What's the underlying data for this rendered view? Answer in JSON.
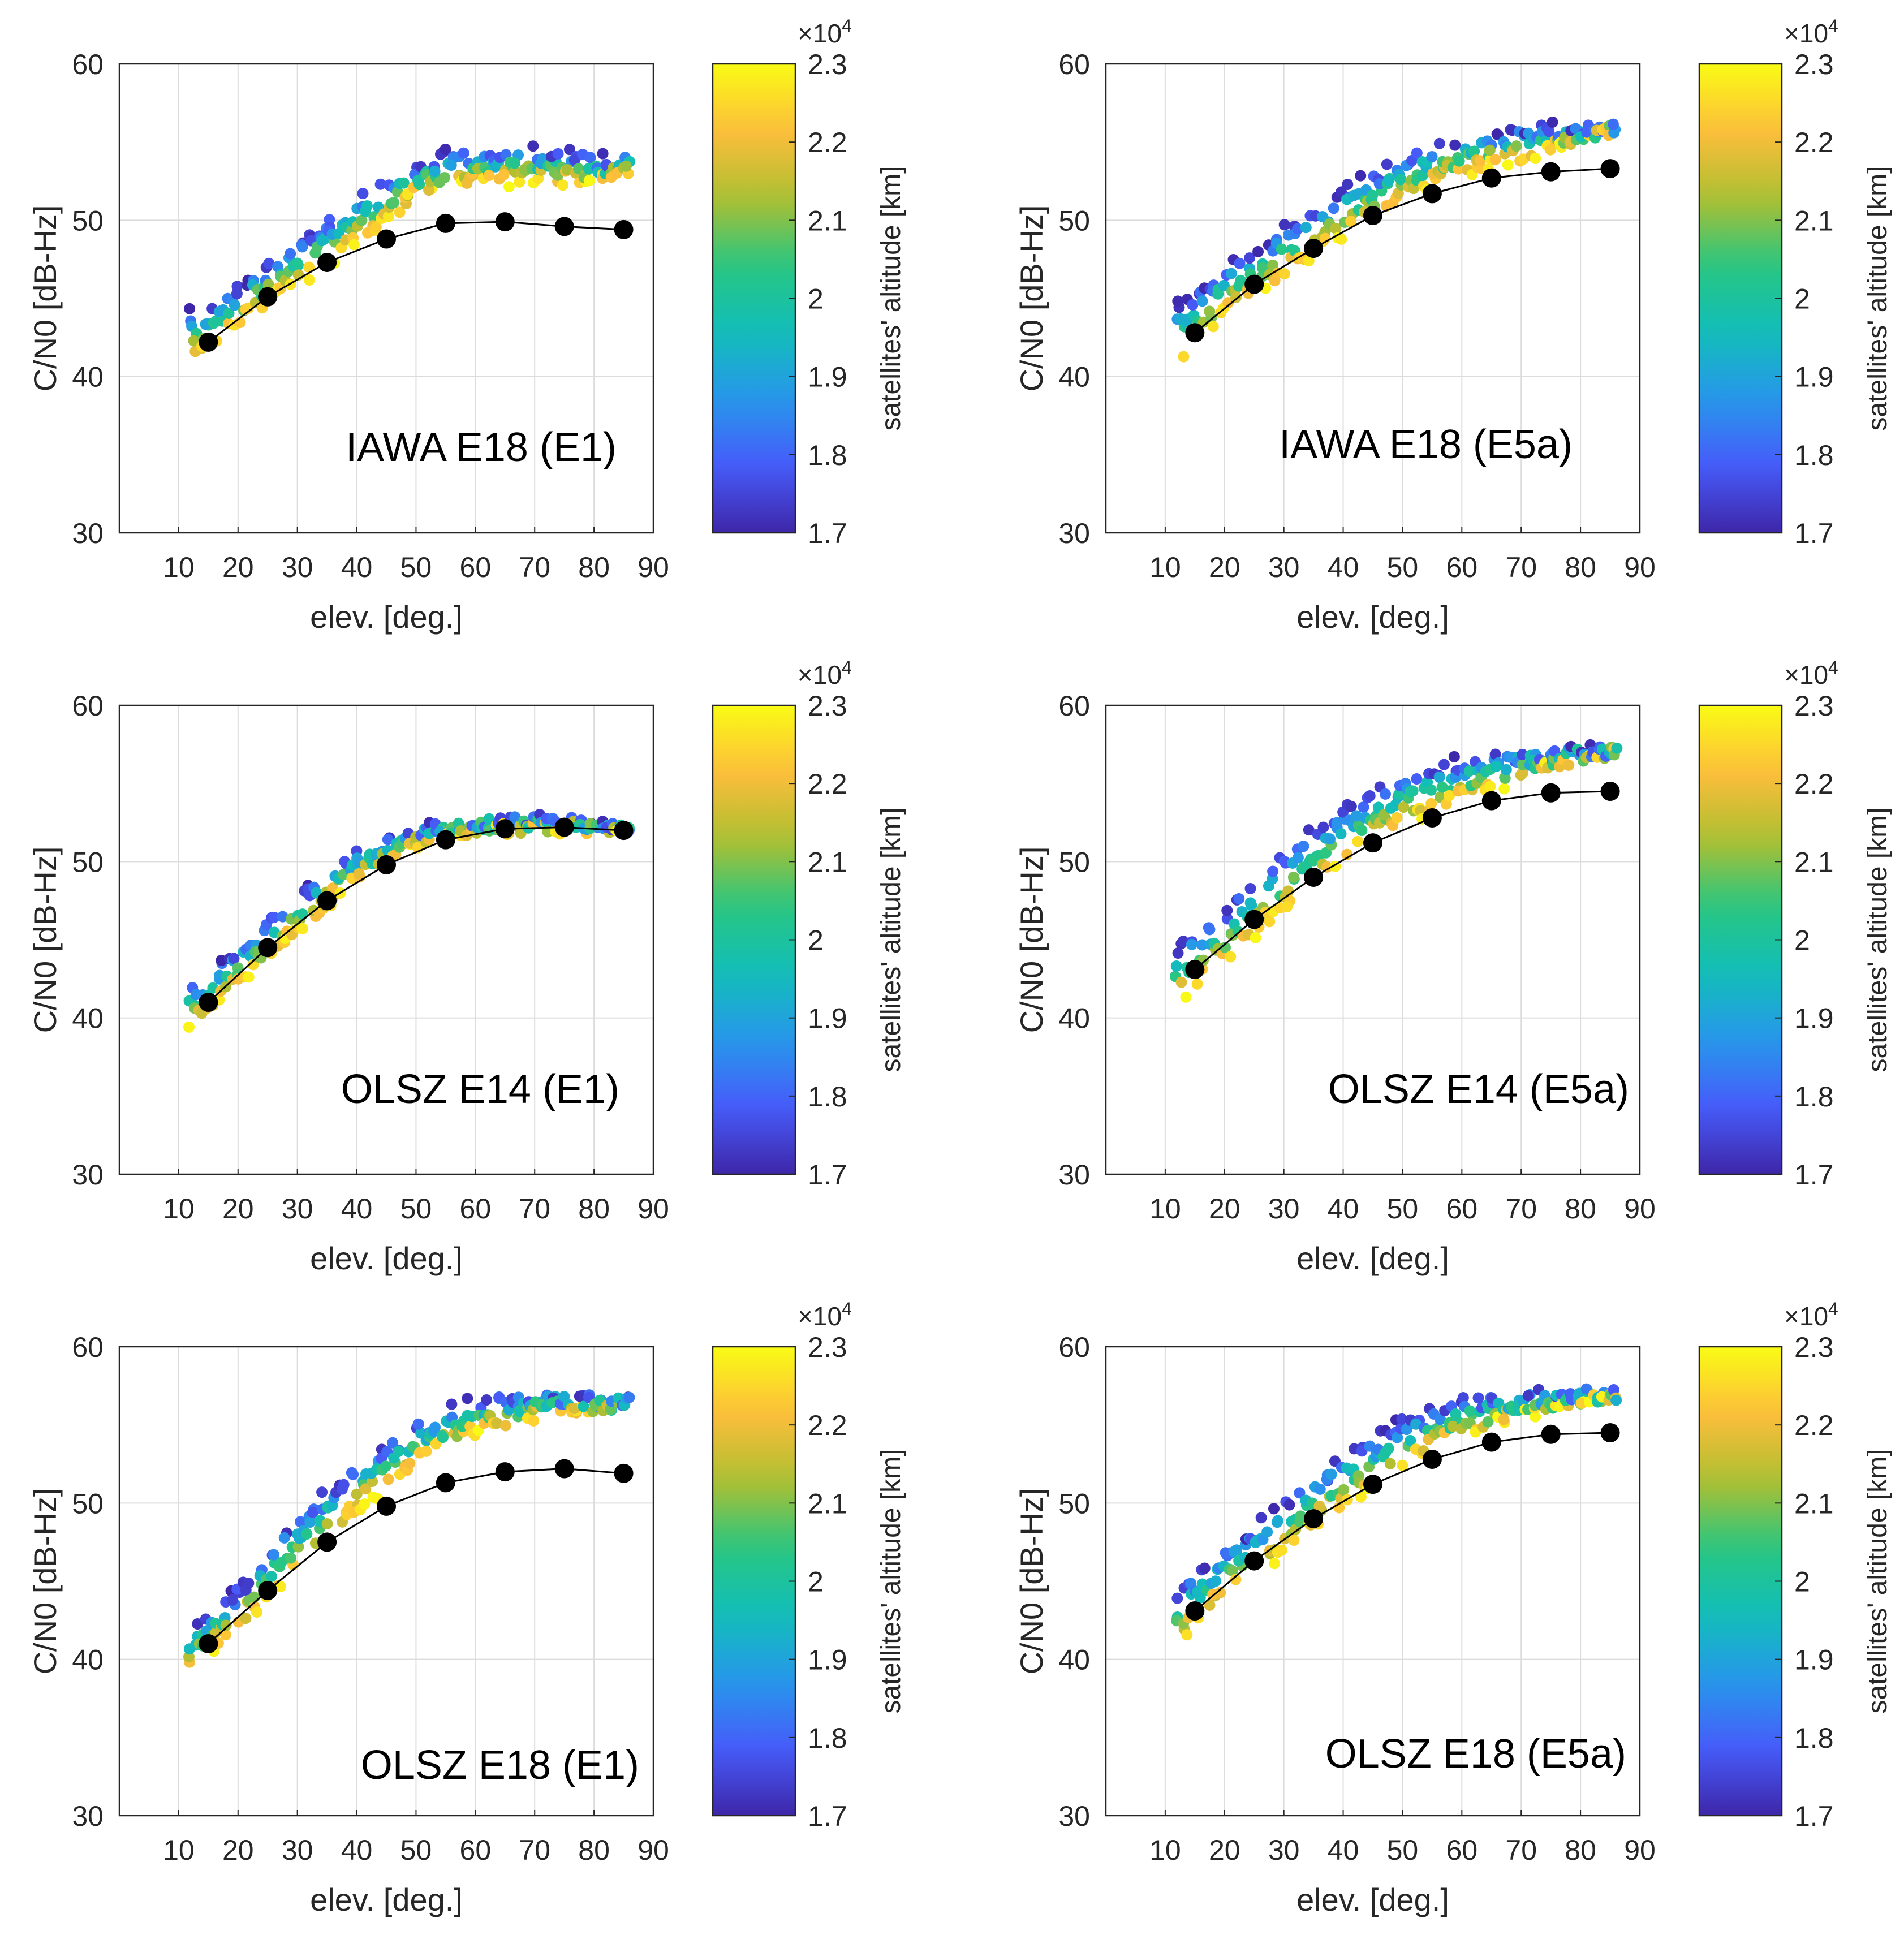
{
  "chart_data": [
    {
      "type": "scatter",
      "title": "IAWA E18 (E1)",
      "xlabel": "elev. [deg.]",
      "ylabel": "C/N0 [dB-Hz]",
      "xlim": [
        0,
        90
      ],
      "ylim": [
        30,
        60
      ],
      "xticks": [
        10,
        20,
        30,
        40,
        50,
        60,
        70,
        80,
        90
      ],
      "yticks": [
        30,
        40,
        50,
        60
      ],
      "grid": true,
      "colorbar": {
        "label": "satellites' altitude [km]",
        "multiplier": "×10",
        "exponent": "4",
        "ticks": [
          "1.7",
          "1.8",
          "1.9",
          "2",
          "2.1",
          "2.2",
          "2.3"
        ],
        "range": [
          1.7,
          2.3
        ]
      },
      "mean_curve": {
        "x": [
          15,
          25,
          35,
          45,
          55,
          65,
          75,
          85
        ],
        "y": [
          42.2,
          45.1,
          47.3,
          48.8,
          49.8,
          49.9,
          49.6,
          49.4
        ]
      },
      "scatter_envelope": {
        "x": [
          12,
          20,
          30,
          40,
          50,
          60,
          70,
          80,
          86
        ],
        "upper": [
          44,
          45.5,
          48.5,
          51.5,
          53.8,
          54.5,
          54.5,
          54,
          53.8
        ],
        "lower": [
          41,
          43.5,
          46,
          48.5,
          51.5,
          52.5,
          52.5,
          52.5,
          53.2
        ]
      }
    },
    {
      "type": "scatter",
      "title": "IAWA E18 (E5a)",
      "xlabel": "elev. [deg.]",
      "ylabel": "C/N0 [dB-Hz]",
      "xlim": [
        0,
        90
      ],
      "ylim": [
        30,
        60
      ],
      "xticks": [
        10,
        20,
        30,
        40,
        50,
        60,
        70,
        80,
        90
      ],
      "yticks": [
        30,
        40,
        50,
        60
      ],
      "grid": true,
      "colorbar": {
        "label": "satellites' altitude [km]",
        "multiplier": "×10",
        "exponent": "4",
        "ticks": [
          "1.7",
          "1.8",
          "1.9",
          "2",
          "2.1",
          "2.2",
          "2.3"
        ],
        "range": [
          1.7,
          2.3
        ]
      },
      "mean_curve": {
        "x": [
          15,
          25,
          35,
          45,
          55,
          65,
          75,
          85
        ],
        "y": [
          42.8,
          45.9,
          48.2,
          50.3,
          51.7,
          52.7,
          53.1,
          53.3
        ]
      },
      "scatter_envelope": {
        "x": [
          12,
          20,
          30,
          40,
          50,
          60,
          70,
          80,
          86
        ],
        "upper": [
          44.5,
          47,
          49.5,
          52,
          54,
          55.3,
          55.8,
          56,
          56
        ],
        "lower": [
          41,
          44,
          46.5,
          49,
          51.5,
          53,
          54,
          55,
          55.8
        ]
      }
    },
    {
      "type": "scatter",
      "title": "OLSZ E14 (E1)",
      "xlabel": "elev. [deg.]",
      "ylabel": "C/N0 [dB-Hz]",
      "xlim": [
        0,
        90
      ],
      "ylim": [
        30,
        60
      ],
      "xticks": [
        10,
        20,
        30,
        40,
        50,
        60,
        70,
        80,
        90
      ],
      "yticks": [
        30,
        40,
        50,
        60
      ],
      "grid": true,
      "colorbar": {
        "label": "satellites' altitude [km]",
        "multiplier": "×10",
        "exponent": "4",
        "ticks": [
          "1.7",
          "1.8",
          "1.9",
          "2",
          "2.1",
          "2.2",
          "2.3"
        ],
        "range": [
          1.7,
          2.3
        ]
      },
      "mean_curve": {
        "x": [
          15,
          25,
          35,
          45,
          55,
          65,
          75,
          85
        ],
        "y": [
          41.0,
          44.5,
          47.5,
          49.8,
          51.4,
          52.1,
          52.2,
          52.0
        ]
      },
      "scatter_envelope": {
        "x": [
          12,
          20,
          30,
          40,
          50,
          60,
          70,
          80,
          86
        ],
        "upper": [
          42,
          44.5,
          48,
          50.5,
          52,
          52.7,
          52.8,
          52.6,
          52.3
        ],
        "lower": [
          39.5,
          42,
          45.5,
          49,
          51,
          52,
          52,
          52,
          52
        ]
      }
    },
    {
      "type": "scatter",
      "title": "OLSZ E14 (E5a)",
      "xlabel": "elev. [deg.]",
      "ylabel": "C/N0 [dB-Hz]",
      "xlim": [
        0,
        90
      ],
      "ylim": [
        30,
        60
      ],
      "xticks": [
        10,
        20,
        30,
        40,
        50,
        60,
        70,
        80,
        90
      ],
      "yticks": [
        30,
        40,
        50,
        60
      ],
      "grid": true,
      "colorbar": {
        "label": "satellites' altitude [km]",
        "multiplier": "×10",
        "exponent": "4",
        "ticks": [
          "1.7",
          "1.8",
          "1.9",
          "2",
          "2.1",
          "2.2",
          "2.3"
        ],
        "range": [
          1.7,
          2.3
        ]
      },
      "mean_curve": {
        "x": [
          15,
          25,
          35,
          45,
          55,
          65,
          75,
          85
        ],
        "y": [
          43.1,
          46.3,
          49.0,
          51.2,
          52.8,
          53.9,
          54.4,
          54.5
        ]
      },
      "scatter_envelope": {
        "x": [
          12,
          20,
          30,
          40,
          50,
          60,
          70,
          80,
          86
        ],
        "upper": [
          44.5,
          47,
          50.5,
          53.5,
          55.5,
          56.5,
          57,
          57.2,
          57.2
        ],
        "lower": [
          41,
          43.5,
          47,
          50,
          52.5,
          54,
          55.5,
          56.5,
          57
        ]
      }
    },
    {
      "type": "scatter",
      "title": "OLSZ E18 (E1)",
      "xlabel": "elev. [deg.]",
      "ylabel": "C/N0 [dB-Hz]",
      "xlim": [
        0,
        90
      ],
      "ylim": [
        30,
        60
      ],
      "xticks": [
        10,
        20,
        30,
        40,
        50,
        60,
        70,
        80,
        90
      ],
      "yticks": [
        30,
        40,
        50,
        60
      ],
      "grid": true,
      "colorbar": {
        "label": "satellites' altitude [km]",
        "multiplier": "×10",
        "exponent": "4",
        "ticks": [
          "1.7",
          "1.8",
          "1.9",
          "2",
          "2.1",
          "2.2",
          "2.3"
        ],
        "range": [
          1.7,
          2.3
        ]
      },
      "mean_curve": {
        "x": [
          15,
          25,
          35,
          45,
          55,
          65,
          75,
          85
        ],
        "y": [
          41.0,
          44.4,
          47.5,
          49.8,
          51.3,
          52.0,
          52.2,
          51.9
        ]
      },
      "scatter_envelope": {
        "x": [
          12,
          20,
          30,
          40,
          50,
          60,
          70,
          80,
          86
        ],
        "upper": [
          42,
          44.5,
          49,
          52.5,
          55,
          56.8,
          57,
          56.7,
          56.4
        ],
        "lower": [
          39.5,
          42,
          46,
          49.5,
          52.5,
          54.5,
          55.5,
          56,
          56.3
        ]
      }
    },
    {
      "type": "scatter",
      "title": "OLSZ E18 (E5a)",
      "xlabel": "elev. [deg.]",
      "ylabel": "C/N0 [dB-Hz]",
      "xlim": [
        0,
        90
      ],
      "ylim": [
        30,
        60
      ],
      "xticks": [
        10,
        20,
        30,
        40,
        50,
        60,
        70,
        80,
        90
      ],
      "yticks": [
        30,
        40,
        50,
        60
      ],
      "grid": true,
      "colorbar": {
        "label": "satellites' altitude [km]",
        "multiplier": "×10",
        "exponent": "4",
        "ticks": [
          "1.7",
          "1.8",
          "1.9",
          "2",
          "2.1",
          "2.2",
          "2.3"
        ],
        "range": [
          1.7,
          2.3
        ]
      },
      "mean_curve": {
        "x": [
          15,
          25,
          35,
          45,
          55,
          65,
          75,
          85
        ],
        "y": [
          43.1,
          46.3,
          49.0,
          51.2,
          52.8,
          53.9,
          54.4,
          54.5
        ]
      },
      "scatter_envelope": {
        "x": [
          12,
          20,
          30,
          40,
          50,
          60,
          70,
          80,
          86
        ],
        "upper": [
          44.5,
          47,
          50,
          53,
          55.3,
          56.5,
          57,
          57,
          57
        ],
        "lower": [
          41,
          44,
          47,
          50,
          52.5,
          54.5,
          55.5,
          56.5,
          56.8
        ]
      }
    }
  ]
}
